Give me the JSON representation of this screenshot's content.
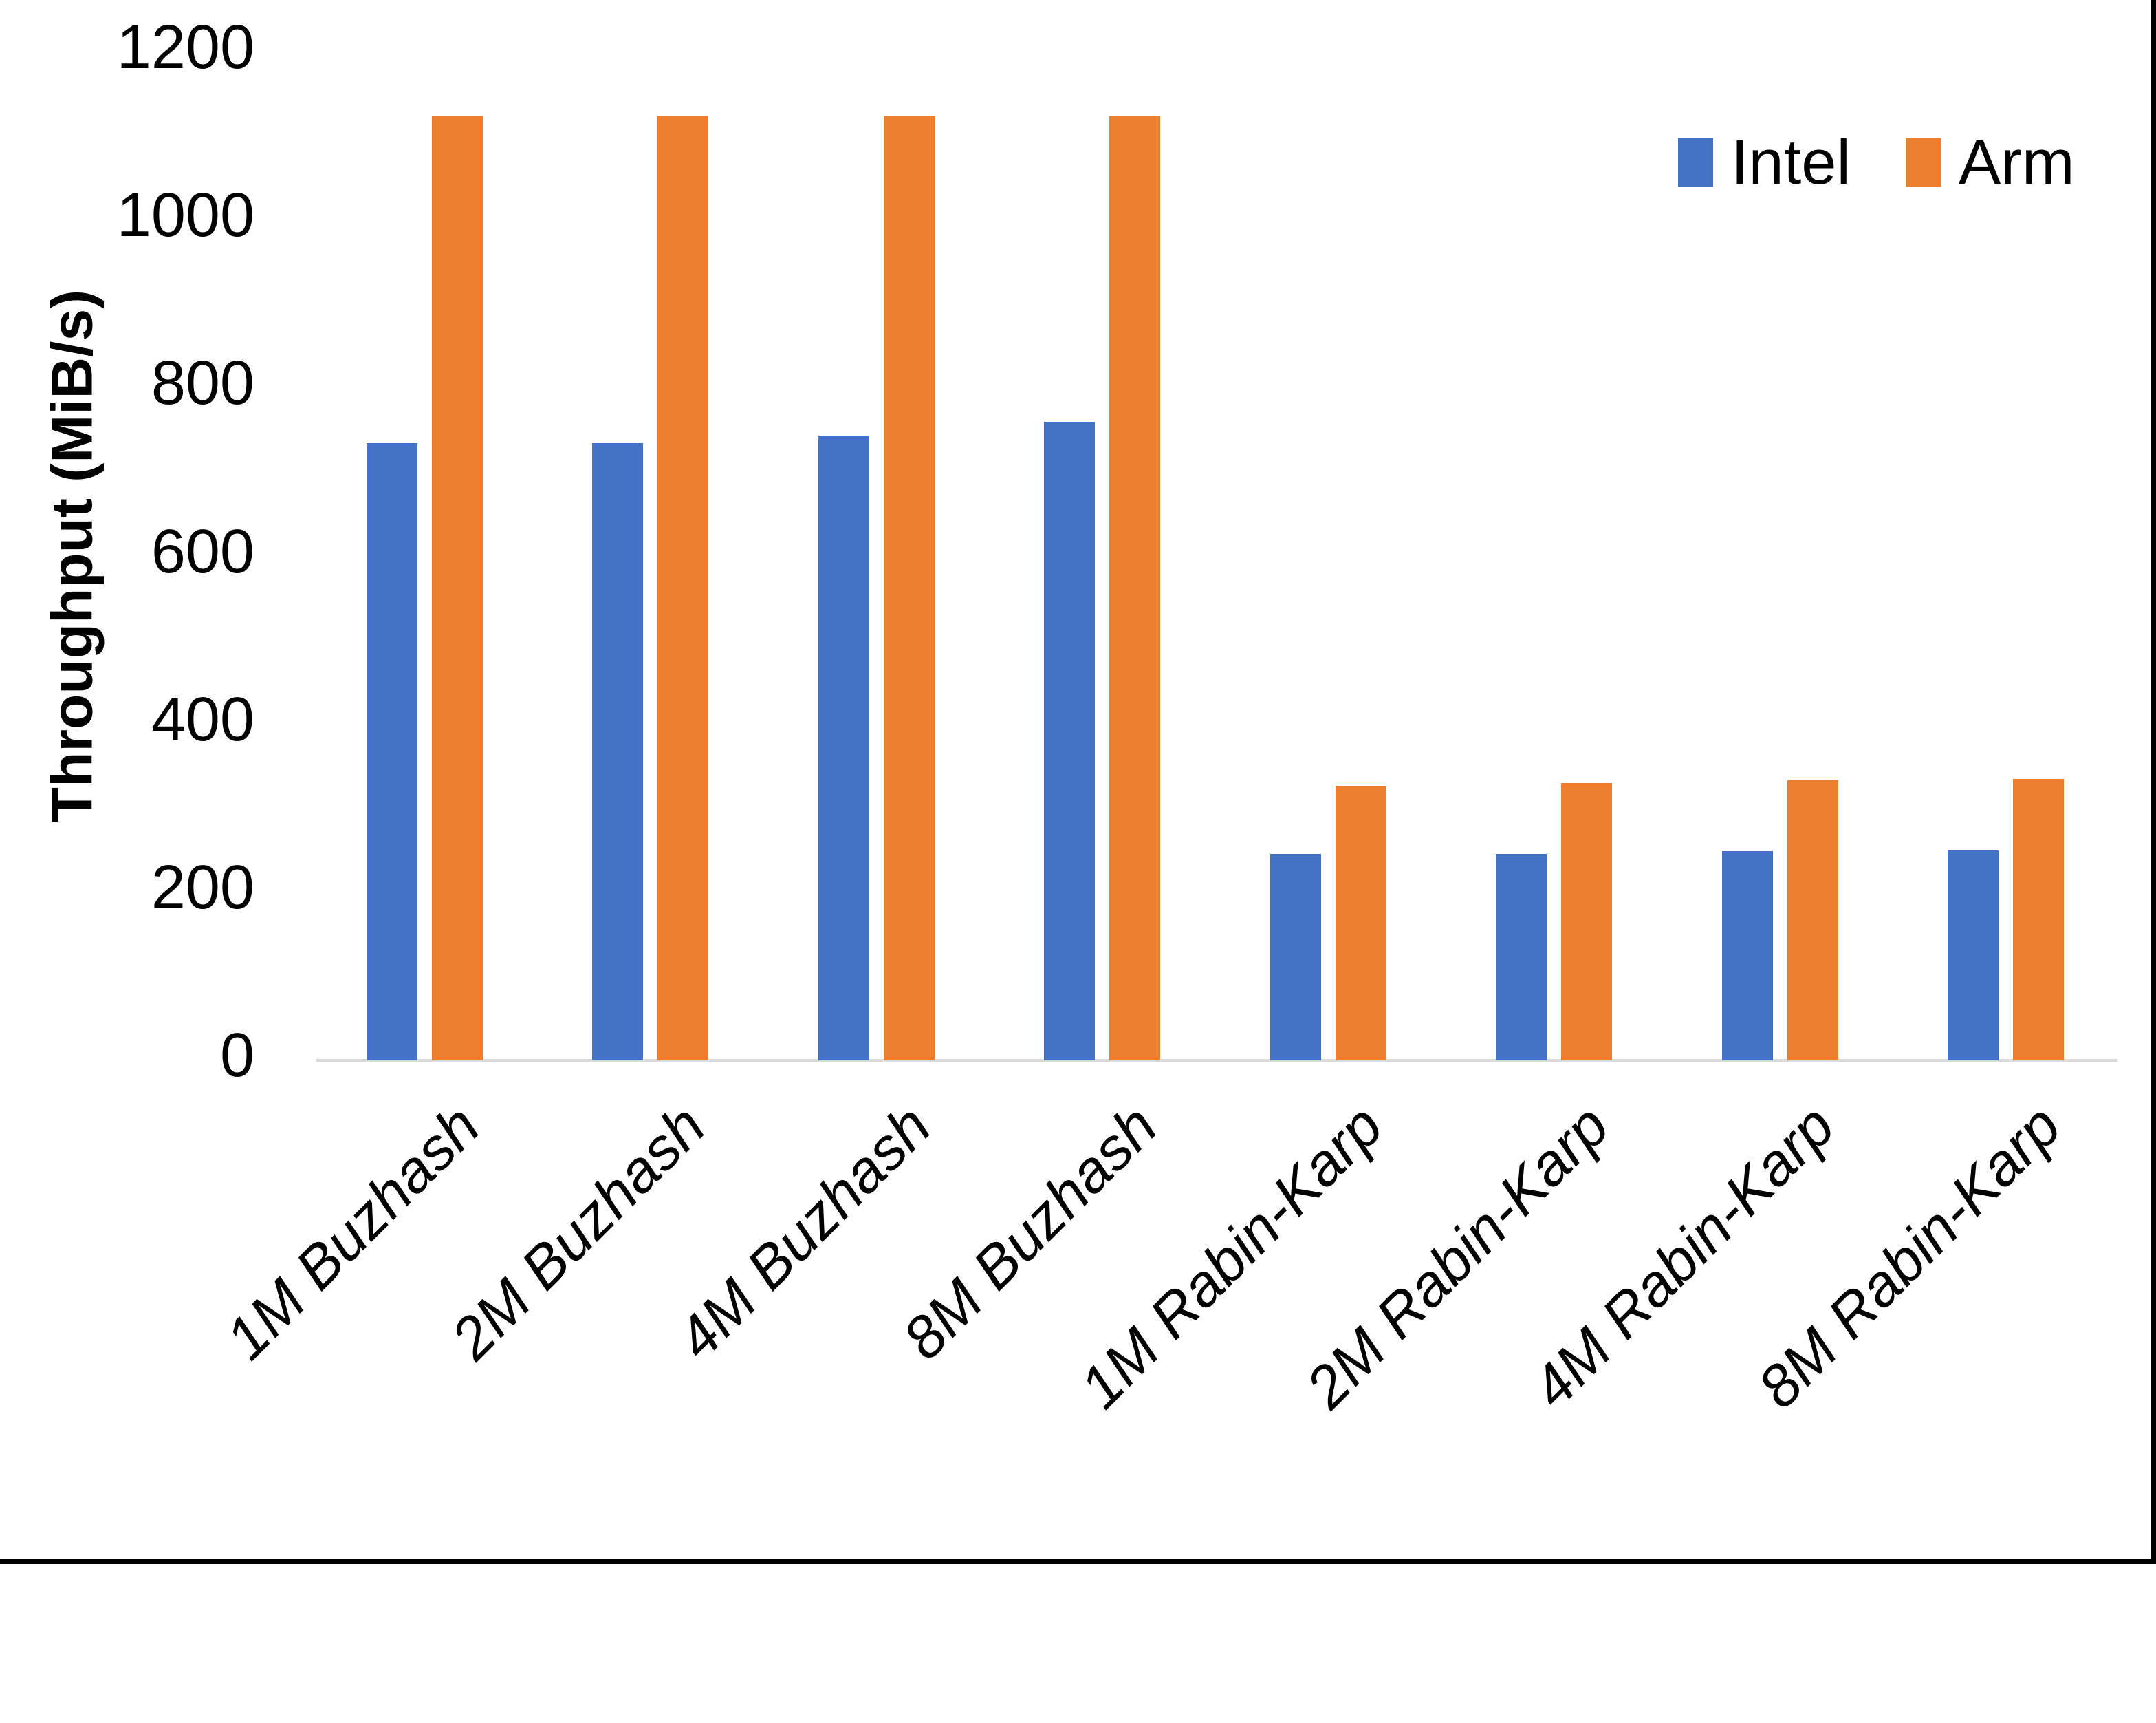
{
  "chart_data": {
    "type": "bar",
    "title": "",
    "xlabel": "",
    "ylabel": "Throughput (MiB/s)",
    "categories": [
      "1M Buzhash",
      "2M Buzhash",
      "4M Buzhash",
      "8M Buzhash",
      "1M Rabin-Karp",
      "2M Rabin-Karp",
      "4M Rabin-Karp",
      "8M Rabin-Karp"
    ],
    "series": [
      {
        "name": "Intel",
        "color": "#4472C4",
        "values": [
          735,
          735,
          744,
          760,
          246,
          246,
          249,
          250
        ]
      },
      {
        "name": "Arm",
        "color": "#ED7D31",
        "values": [
          1125,
          1125,
          1125,
          1125,
          327,
          330,
          333,
          335
        ]
      }
    ],
    "ylim": [
      0,
      1200
    ],
    "yticks": [
      0,
      200,
      400,
      600,
      800,
      1000,
      1200
    ],
    "grid": false,
    "legend_position": "top-right",
    "axis_line_color": "#D9D9D9",
    "text_color": "#000000"
  }
}
